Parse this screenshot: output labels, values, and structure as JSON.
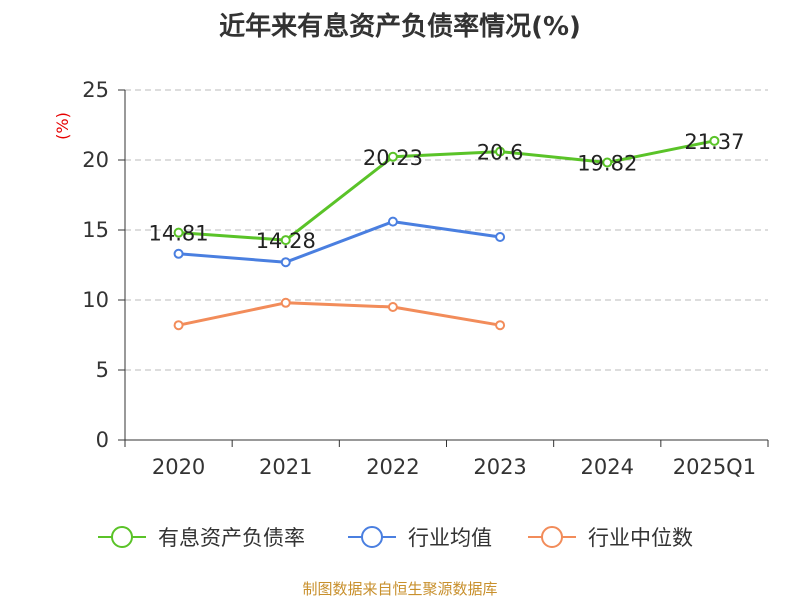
{
  "chart_data": {
    "type": "line",
    "title": "近年来有息资产负债率情况(%)",
    "unit_label": "(%)",
    "categories": [
      "2020",
      "2021",
      "2022",
      "2023",
      "2024",
      "2025Q1"
    ],
    "ylim": [
      0,
      25
    ],
    "yticks": [
      0,
      5,
      10,
      15,
      20,
      25
    ],
    "grid": true,
    "legend_position": "bottom",
    "series": [
      {
        "name": "有息资产负债率",
        "color": "#5ac328",
        "values": [
          14.81,
          14.28,
          20.23,
          20.6,
          19.82,
          21.37
        ],
        "labels": [
          "14.81",
          "14.28",
          "20.23",
          "20.6",
          "19.82",
          "21.37"
        ]
      },
      {
        "name": "行业均值",
        "color": "#4a7fe0",
        "values": [
          13.3,
          12.7,
          15.6,
          14.5,
          null,
          null
        ]
      },
      {
        "name": "行业中位数",
        "color": "#f28c5a",
        "values": [
          8.2,
          9.8,
          9.5,
          8.2,
          null,
          null
        ]
      }
    ]
  },
  "source": "制图数据来自恒生聚源数据库"
}
